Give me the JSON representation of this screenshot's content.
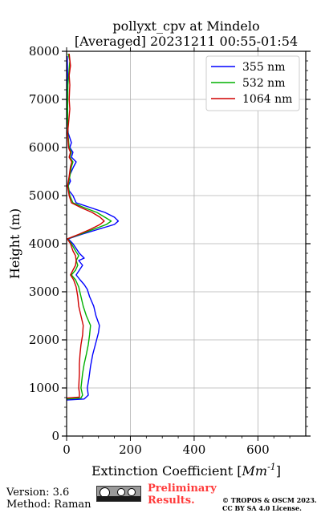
{
  "chart_data": {
    "type": "line",
    "title": "pollyxt_cpv at Mindelo",
    "subtitle": "[Averaged] 20231211 00:55-01:54",
    "xlabel": "Extinction Coefficient [Mm$^{-1}$]",
    "ylabel": "Height (m)",
    "xlim": [
      0,
      750
    ],
    "ylim": [
      0,
      8000
    ],
    "xticks": [
      0,
      200,
      400,
      600
    ],
    "yticks": [
      0,
      1000,
      2000,
      3000,
      4000,
      5000,
      6000,
      7000,
      8000
    ],
    "grid": true,
    "legend_position": "top-right",
    "series": [
      {
        "name": "355 nm",
        "color": "#0000ff",
        "points": [
          [
            0,
            750
          ],
          [
            55,
            770
          ],
          [
            68,
            850
          ],
          [
            65,
            1000
          ],
          [
            70,
            1200
          ],
          [
            75,
            1450
          ],
          [
            82,
            1700
          ],
          [
            92,
            1950
          ],
          [
            100,
            2150
          ],
          [
            103,
            2300
          ],
          [
            92,
            2500
          ],
          [
            85,
            2700
          ],
          [
            72,
            2900
          ],
          [
            65,
            3050
          ],
          [
            55,
            3150
          ],
          [
            42,
            3250
          ],
          [
            30,
            3350
          ],
          [
            40,
            3450
          ],
          [
            50,
            3550
          ],
          [
            38,
            3650
          ],
          [
            55,
            3700
          ],
          [
            40,
            3800
          ],
          [
            30,
            3900
          ],
          [
            20,
            4000
          ],
          [
            5,
            4100
          ],
          [
            50,
            4200
          ],
          [
            100,
            4300
          ],
          [
            150,
            4400
          ],
          [
            162,
            4470
          ],
          [
            150,
            4550
          ],
          [
            120,
            4650
          ],
          [
            75,
            4750
          ],
          [
            30,
            4850
          ],
          [
            20,
            5000
          ],
          [
            8,
            5100
          ],
          [
            5,
            5200
          ],
          [
            12,
            5300
          ],
          [
            8,
            5400
          ],
          [
            15,
            5500
          ],
          [
            22,
            5600
          ],
          [
            30,
            5700
          ],
          [
            15,
            5800
          ],
          [
            20,
            5900
          ],
          [
            10,
            6000
          ],
          [
            15,
            6100
          ],
          [
            10,
            6200
          ],
          [
            5,
            6300
          ],
          [
            3,
            6500
          ],
          [
            3,
            6800
          ],
          [
            2,
            7000
          ],
          [
            3,
            7500
          ],
          [
            2,
            7900
          ]
        ]
      },
      {
        "name": "532 nm",
        "color": "#00b000",
        "points": [
          [
            0,
            770
          ],
          [
            45,
            790
          ],
          [
            50,
            850
          ],
          [
            45,
            1000
          ],
          [
            50,
            1300
          ],
          [
            55,
            1500
          ],
          [
            62,
            1700
          ],
          [
            68,
            1900
          ],
          [
            72,
            2100
          ],
          [
            75,
            2300
          ],
          [
            62,
            2500
          ],
          [
            52,
            2700
          ],
          [
            45,
            2900
          ],
          [
            38,
            3100
          ],
          [
            28,
            3250
          ],
          [
            15,
            3350
          ],
          [
            28,
            3450
          ],
          [
            35,
            3550
          ],
          [
            30,
            3650
          ],
          [
            38,
            3750
          ],
          [
            28,
            3850
          ],
          [
            15,
            4000
          ],
          [
            3,
            4100
          ],
          [
            45,
            4200
          ],
          [
            85,
            4300
          ],
          [
            125,
            4400
          ],
          [
            140,
            4470
          ],
          [
            120,
            4550
          ],
          [
            95,
            4650
          ],
          [
            55,
            4750
          ],
          [
            20,
            4850
          ],
          [
            10,
            5000
          ],
          [
            5,
            5200
          ],
          [
            10,
            5400
          ],
          [
            15,
            5600
          ],
          [
            20,
            5700
          ],
          [
            10,
            5800
          ],
          [
            15,
            5900
          ],
          [
            8,
            6000
          ],
          [
            4,
            6300
          ],
          [
            3,
            6800
          ],
          [
            4,
            7300
          ],
          [
            10,
            7800
          ],
          [
            5,
            7950
          ]
        ]
      },
      {
        "name": "1064 nm",
        "color": "#d00000",
        "points": [
          [
            0,
            790
          ],
          [
            40,
            810
          ],
          [
            40,
            900
          ],
          [
            38,
            1000
          ],
          [
            40,
            1300
          ],
          [
            40,
            1500
          ],
          [
            42,
            1700
          ],
          [
            45,
            1900
          ],
          [
            50,
            2100
          ],
          [
            52,
            2300
          ],
          [
            45,
            2500
          ],
          [
            38,
            2700
          ],
          [
            35,
            2900
          ],
          [
            30,
            3100
          ],
          [
            22,
            3250
          ],
          [
            12,
            3350
          ],
          [
            20,
            3450
          ],
          [
            28,
            3550
          ],
          [
            30,
            3650
          ],
          [
            28,
            3750
          ],
          [
            20,
            3850
          ],
          [
            12,
            4000
          ],
          [
            2,
            4100
          ],
          [
            40,
            4200
          ],
          [
            75,
            4300
          ],
          [
            105,
            4400
          ],
          [
            118,
            4470
          ],
          [
            105,
            4550
          ],
          [
            80,
            4650
          ],
          [
            45,
            4750
          ],
          [
            15,
            4850
          ],
          [
            8,
            5000
          ],
          [
            3,
            5200
          ],
          [
            8,
            5400
          ],
          [
            12,
            5600
          ],
          [
            16,
            5700
          ],
          [
            8,
            5800
          ],
          [
            12,
            5900
          ],
          [
            6,
            6000
          ],
          [
            3,
            6300
          ],
          [
            6,
            6500
          ],
          [
            10,
            6800
          ],
          [
            8,
            7000
          ],
          [
            10,
            7300
          ],
          [
            8,
            7500
          ],
          [
            12,
            7700
          ],
          [
            8,
            7950
          ]
        ]
      }
    ]
  },
  "footer": {
    "version": "Version: 3.6",
    "method": "Method: Raman",
    "preliminary_line1": "Preliminary",
    "preliminary_line2": "Results.",
    "copyright_line1": "© TROPOS & OSCM 2023.",
    "copyright_line2": "CC BY SA 4.0 License."
  }
}
